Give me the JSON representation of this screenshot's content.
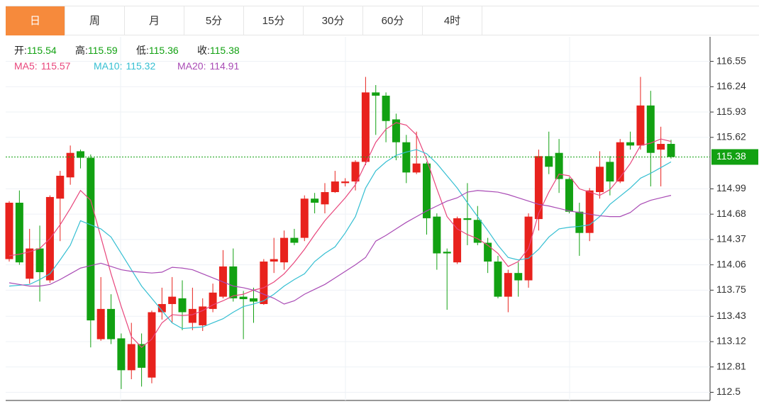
{
  "tabs": [
    "日",
    "周",
    "月",
    "5分",
    "15分",
    "30分",
    "60分",
    "4时"
  ],
  "active_tab": 0,
  "chart_data": {
    "type": "candlestick",
    "ohlc_labels": [
      "开:",
      "高:",
      "低:",
      "收:"
    ],
    "up_color": "#e8221d",
    "down_color": "#12a112",
    "ylim": [
      112.4,
      116.85
    ],
    "yticks": [
      112.5,
      112.81,
      113.12,
      113.43,
      113.75,
      114.06,
      114.37,
      114.68,
      114.99,
      115.62,
      115.93,
      116.24,
      116.55
    ],
    "grid": true,
    "open": [
      114.13,
      114.82,
      113.89,
      114.26,
      113.87,
      114.87,
      115.13,
      115.45,
      115.37,
      113.15,
      113.52,
      113.16,
      112.77,
      113.09,
      112.68,
      113.48,
      113.58,
      113.65,
      113.35,
      113.32,
      113.52,
      113.67,
      114.04,
      113.67,
      113.65,
      113.58,
      114.1,
      114.09,
      114.39,
      114.39,
      114.87,
      114.8,
      114.95,
      115.06,
      115.08,
      115.32,
      116.17,
      116.13,
      115.84,
      115.56,
      115.19,
      115.3,
      114.65,
      114.22,
      114.09,
      114.63,
      114.61,
      114.33,
      114.1,
      113.67,
      113.96,
      113.87,
      114.62,
      115.39,
      115.43,
      115.11,
      114.71,
      114.45,
      114.95,
      115.32,
      115.08,
      115.56,
      115.52,
      116.01,
      115.47,
      115.54
    ],
    "high": [
      114.84,
      114.97,
      114.5,
      114.54,
      114.91,
      115.21,
      115.52,
      115.47,
      115.41,
      113.91,
      113.7,
      113.22,
      113.35,
      113.22,
      113.5,
      113.78,
      113.91,
      113.87,
      113.78,
      113.65,
      113.83,
      114.24,
      114.26,
      113.74,
      113.78,
      114.13,
      114.39,
      114.48,
      114.5,
      114.91,
      114.94,
      115.06,
      115.21,
      115.12,
      115.34,
      116.36,
      116.26,
      116.17,
      115.91,
      115.65,
      115.69,
      115.32,
      114.69,
      114.26,
      114.65,
      115.06,
      114.78,
      114.39,
      114.17,
      114.0,
      114.09,
      114.69,
      115.47,
      115.69,
      115.6,
      115.13,
      114.82,
      115.0,
      115.45,
      115.39,
      115.6,
      115.69,
      116.36,
      116.19,
      115.75,
      115.59
    ],
    "low": [
      114.1,
      114.06,
      113.83,
      113.61,
      113.84,
      114.35,
      115.04,
      115.24,
      113.05,
      113.13,
      113.09,
      112.54,
      112.66,
      112.57,
      112.61,
      113.39,
      113.35,
      113.26,
      113.26,
      113.25,
      113.48,
      113.65,
      113.61,
      113.15,
      113.35,
      113.57,
      113.96,
      114.0,
      114.3,
      114.35,
      114.69,
      114.69,
      114.94,
      115.02,
      114.97,
      115.28,
      115.65,
      115.56,
      115.34,
      115.06,
      115.17,
      114.43,
      114.0,
      113.51,
      114.07,
      114.3,
      114.3,
      113.96,
      113.65,
      113.48,
      113.67,
      113.78,
      114.48,
      115.17,
      114.94,
      114.69,
      114.17,
      114.35,
      114.87,
      114.91,
      115.06,
      115.47,
      115.47,
      115.02,
      115.02,
      115.36
    ],
    "close": [
      114.82,
      114.09,
      114.26,
      113.97,
      114.89,
      115.15,
      115.43,
      115.37,
      113.38,
      113.52,
      113.15,
      112.77,
      113.09,
      112.8,
      113.48,
      113.58,
      113.67,
      113.48,
      113.52,
      113.55,
      113.72,
      114.04,
      113.65,
      113.64,
      113.61,
      114.1,
      114.13,
      114.39,
      114.33,
      114.87,
      114.82,
      114.95,
      115.08,
      115.08,
      115.32,
      116.17,
      116.13,
      115.82,
      115.56,
      115.19,
      115.3,
      114.63,
      114.2,
      114.2,
      114.63,
      114.61,
      114.33,
      114.1,
      113.67,
      113.96,
      113.87,
      114.65,
      115.39,
      115.26,
      115.11,
      114.71,
      114.45,
      114.97,
      115.26,
      115.08,
      115.56,
      115.52,
      116.01,
      115.43,
      115.54,
      115.38
    ],
    "series": [
      {
        "name": "MA5:",
        "color": "#e8467c",
        "values": [
          114.17,
          114.19,
          114.22,
          114.26,
          114.38,
          114.55,
          114.75,
          114.97,
          114.85,
          114.4,
          113.95,
          113.55,
          113.18,
          113.05,
          113.15,
          113.35,
          113.45,
          113.44,
          113.45,
          113.5,
          113.57,
          113.62,
          113.68,
          113.7,
          113.75,
          113.78,
          113.85,
          113.95,
          114.09,
          114.25,
          114.43,
          114.6,
          114.74,
          114.88,
          115.04,
          115.3,
          115.56,
          115.72,
          115.8,
          115.77,
          115.65,
          115.35,
          114.99,
          114.65,
          114.5,
          114.43,
          114.38,
          114.3,
          114.2,
          114.04,
          114.1,
          114.26,
          114.69,
          114.95,
          115.17,
          115.15,
          114.99,
          114.95,
          114.91,
          114.98,
          115.13,
          115.3,
          115.52,
          115.55,
          115.6,
          115.57
        ]
      },
      {
        "name": "MA10:",
        "color": "#35bfd2",
        "values": [
          113.8,
          113.81,
          113.82,
          113.88,
          113.95,
          114.12,
          114.3,
          114.6,
          114.55,
          114.5,
          114.4,
          114.2,
          114.0,
          113.8,
          113.65,
          113.5,
          113.35,
          113.28,
          113.29,
          113.3,
          113.35,
          113.4,
          113.48,
          113.55,
          113.58,
          113.62,
          113.7,
          113.8,
          113.88,
          113.95,
          114.1,
          114.2,
          114.28,
          114.45,
          114.65,
          115.0,
          115.21,
          115.32,
          115.4,
          115.44,
          115.47,
          115.42,
          115.3,
          115.15,
          115.0,
          114.82,
          114.65,
          114.48,
          114.3,
          114.15,
          114.12,
          114.14,
          114.25,
          114.4,
          114.5,
          114.52,
          114.53,
          114.55,
          114.65,
          114.8,
          114.9,
          115.0,
          115.12,
          115.18,
          115.25,
          115.32
        ]
      },
      {
        "name": "MA20:",
        "color": "#a94bb5",
        "values": [
          113.84,
          113.82,
          113.8,
          113.8,
          113.82,
          113.88,
          113.95,
          114.02,
          114.05,
          114.08,
          114.04,
          114.0,
          113.98,
          113.97,
          113.96,
          113.97,
          114.03,
          114.02,
          114.0,
          113.95,
          113.9,
          113.85,
          113.8,
          113.78,
          113.75,
          113.7,
          113.65,
          113.58,
          113.62,
          113.7,
          113.76,
          113.82,
          113.9,
          113.98,
          114.06,
          114.15,
          114.35,
          114.42,
          114.5,
          114.58,
          114.65,
          114.72,
          114.78,
          114.84,
          114.88,
          114.95,
          114.97,
          114.96,
          114.95,
          114.92,
          114.88,
          114.84,
          114.8,
          114.78,
          114.75,
          114.72,
          114.7,
          114.68,
          114.66,
          114.65,
          114.65,
          114.7,
          114.8,
          114.85,
          114.88,
          114.91
        ]
      }
    ]
  }
}
